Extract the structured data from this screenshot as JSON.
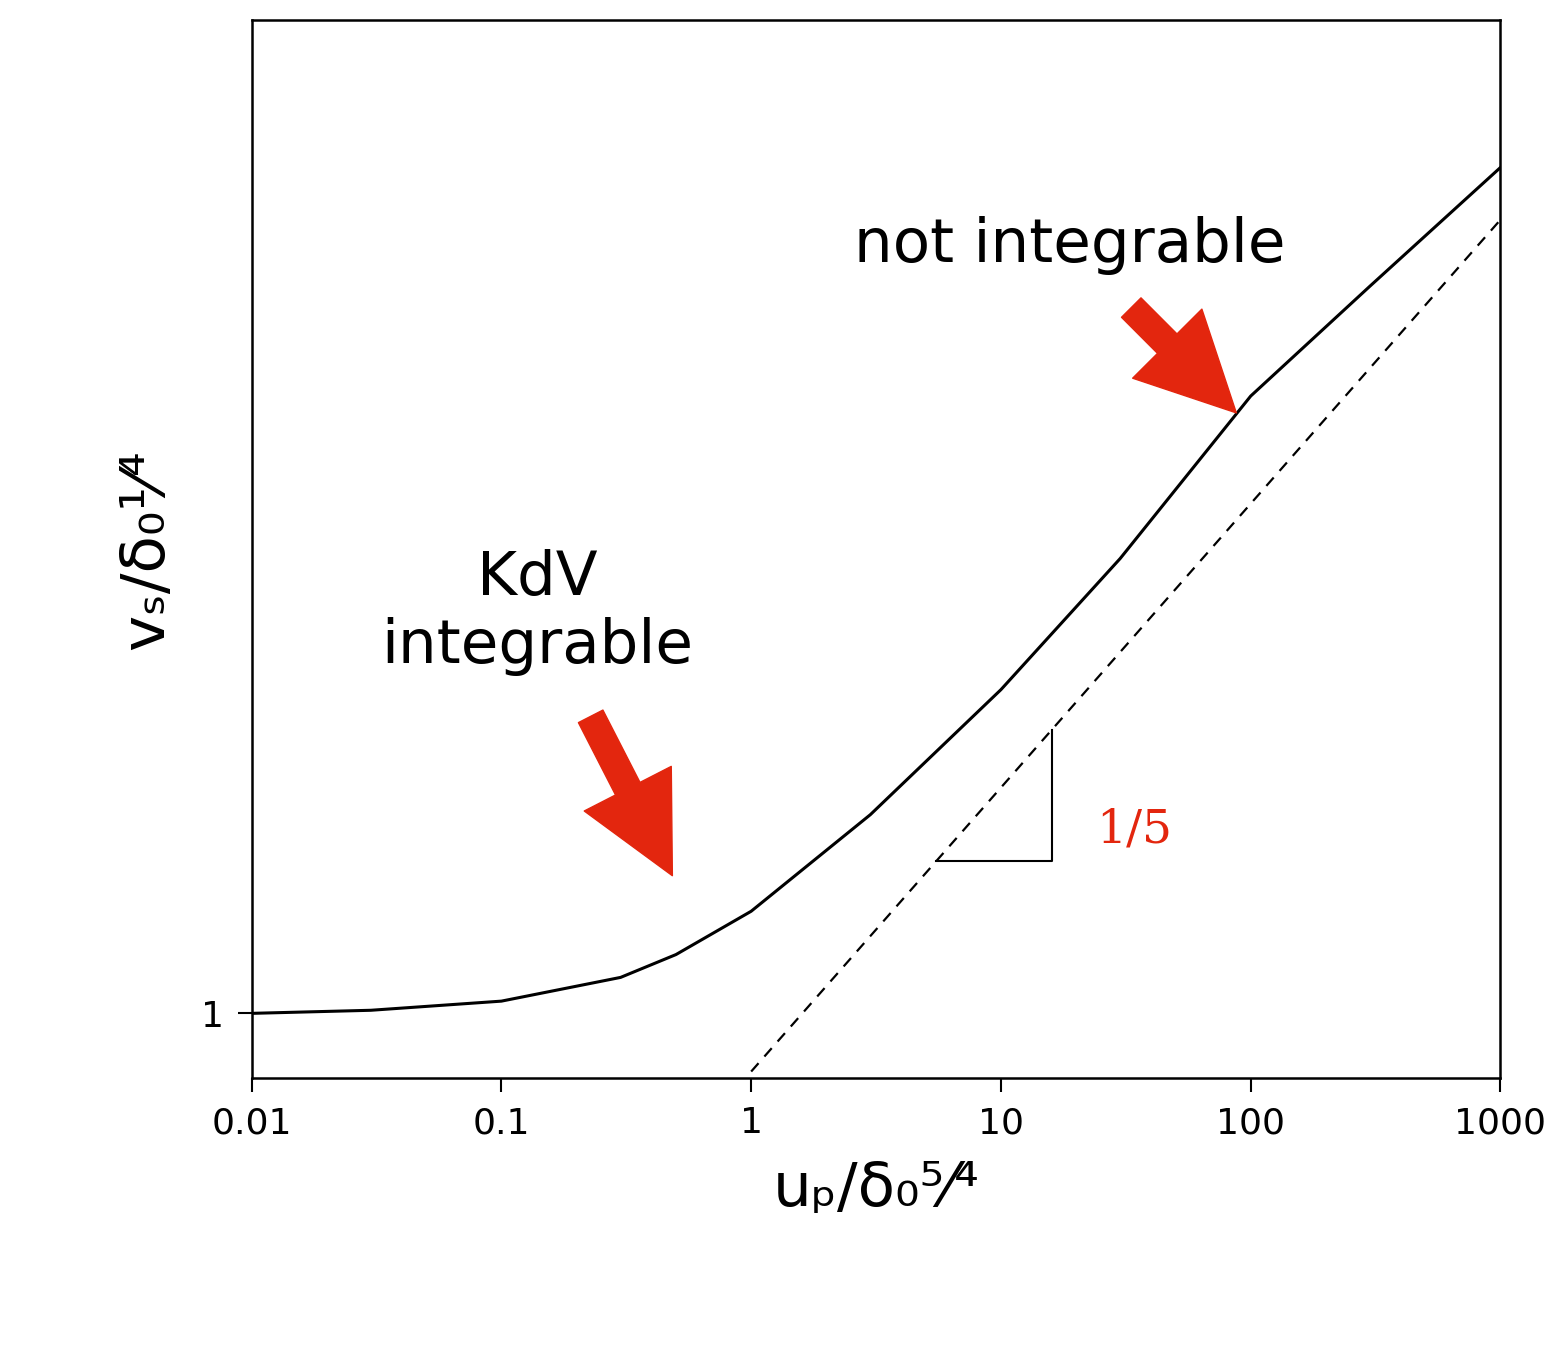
{
  "chart_data": {
    "type": "line",
    "xlabel": "uₚ/δ₀⁵⁄⁴",
    "ylabel": "vₛ/δ₀¹⁄⁴",
    "log": true,
    "xlim": [
      0.01,
      1000
    ],
    "xticks": [
      0.01,
      0.1,
      1,
      10,
      100,
      1000
    ],
    "ylim": [
      0.9,
      5
    ],
    "yticks": [
      1
    ],
    "series": [
      {
        "color": "#000000",
        "line_style": "solid",
        "x": [
          0.01,
          0.03,
          0.1,
          0.3,
          0.5,
          1,
          3,
          10,
          30,
          100,
          300,
          1000
        ],
        "values": [
          1.0,
          1.005,
          1.02,
          1.06,
          1.1,
          1.18,
          1.38,
          1.69,
          2.09,
          2.72,
          3.25,
          3.94
        ]
      },
      {
        "color": "#000000",
        "line_style": "dashed",
        "x": [
          1,
          1000
        ],
        "values": [
          0.91,
          3.62
        ]
      }
    ],
    "annotations": [
      {
        "text": "not integrable",
        "x": 90.8,
        "y": 2.63
      },
      {
        "text": "KdV\nintegrable",
        "x": 0.495,
        "y": 1.24
      },
      {
        "text": "1/5"
      }
    ]
  }
}
